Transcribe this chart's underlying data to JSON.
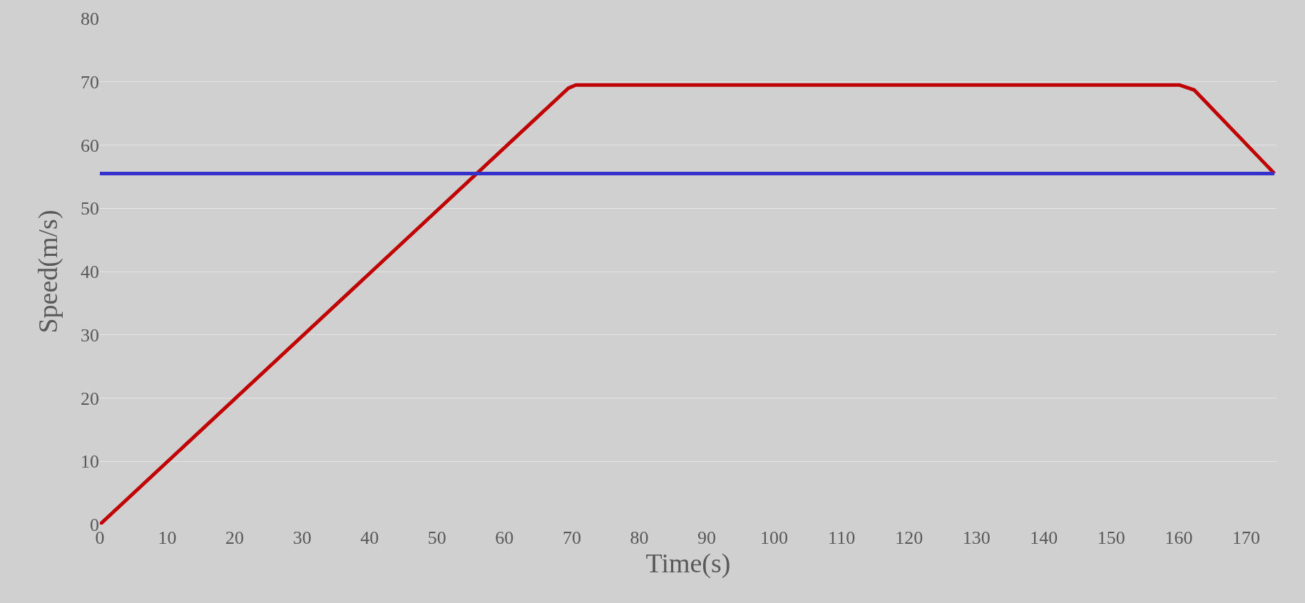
{
  "chart_data": {
    "type": "line",
    "xlabel": "Time(s)",
    "ylabel": "Speed(m/s)",
    "xlim": [
      0,
      174.5
    ],
    "xticks": [
      0,
      10,
      20,
      30,
      40,
      50,
      60,
      70,
      80,
      90,
      100,
      110,
      120,
      130,
      140,
      150,
      160,
      170
    ],
    "ylim": [
      0,
      80
    ],
    "yticks": [
      0,
      10,
      20,
      30,
      40,
      50,
      60,
      70,
      80
    ],
    "grid": "y",
    "marker": "none",
    "line_style": "solid",
    "series": [
      {
        "color": "#c00000",
        "x": [
          0,
          69.5,
          70.6,
          160.1,
          162.3,
          174.2
        ],
        "values": [
          0,
          69,
          69.5,
          69.5,
          68.7,
          55.5
        ]
      },
      {
        "color": "#3333cc",
        "x": [
          0,
          174.2
        ],
        "values": [
          55.5,
          55.5
        ]
      }
    ]
  }
}
